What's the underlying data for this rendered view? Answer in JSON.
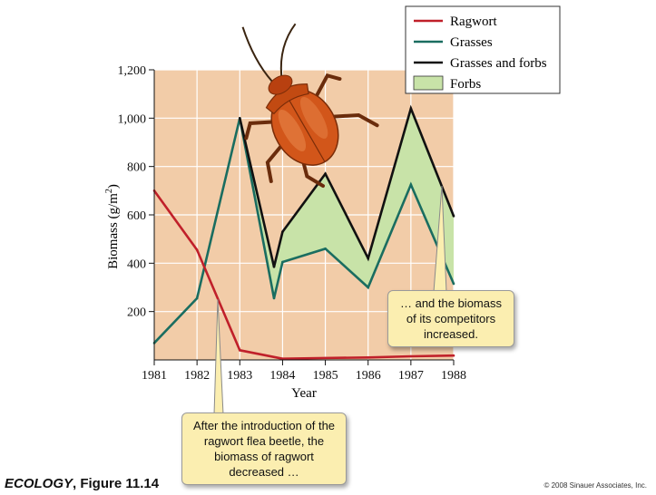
{
  "chart_data": {
    "type": "line",
    "xlabel": "Year",
    "ylabel_main": "Biomass (g/m",
    "ylabel_sup": "2",
    "ylabel_tail": ")",
    "x": [
      1981,
      1982,
      1983,
      1984,
      1985,
      1986,
      1987,
      1988
    ],
    "xlim": [
      1981,
      1988
    ],
    "ylim": [
      0,
      1200
    ],
    "y_ticks": [
      200,
      400,
      600,
      800,
      1000,
      1200
    ],
    "y_tick_labels": [
      "200",
      "400",
      "600",
      "800",
      "1,000",
      "1,200"
    ],
    "x_tick_labels": [
      "1981",
      "1982",
      "1983",
      "1984",
      "1985",
      "1986",
      "1987",
      "1988"
    ],
    "grid": true,
    "legend_position": "top-right",
    "series": [
      {
        "name": "Ragwort",
        "color": "#c0202a",
        "points": [
          [
            1981,
            700
          ],
          [
            1982,
            455
          ],
          [
            1983,
            40
          ],
          [
            1984,
            5
          ],
          [
            1985,
            8
          ],
          [
            1986,
            10
          ],
          [
            1987,
            15
          ],
          [
            1988,
            18
          ]
        ]
      },
      {
        "name": "Grasses",
        "color": "#1a6d60",
        "points": [
          [
            1981,
            70
          ],
          [
            1982,
            255
          ],
          [
            1983,
            1000
          ],
          [
            1983.8,
            255
          ],
          [
            1984,
            405
          ],
          [
            1985,
            460
          ],
          [
            1986,
            300
          ],
          [
            1987,
            725
          ],
          [
            1988,
            315
          ]
        ]
      },
      {
        "name": "Grasses and forbs",
        "color": "#111111",
        "points": [
          [
            1983,
            1000
          ],
          [
            1983.8,
            385
          ],
          [
            1984,
            530
          ],
          [
            1985,
            770
          ],
          [
            1986,
            420
          ],
          [
            1987,
            1040
          ],
          [
            1988,
            595
          ]
        ]
      }
    ],
    "fill": {
      "name": "Forbs",
      "color": "#c8e3a8",
      "between": [
        "Grasses",
        "Grasses and forbs"
      ]
    }
  },
  "annotations": {
    "competitors": "… and the biomass of its competitors increased.",
    "beetle": "After the introduction of the ragwort flea beetle, the biomass of ragwort decreased …"
  },
  "caption": {
    "title": "ECOLOGY",
    "figure": ", Figure 11.14",
    "copyright": "© 2008 Sinauer Associates, Inc."
  },
  "illustration": {
    "icon": "flea-beetle-icon",
    "color": "#d2561a"
  },
  "colors": {
    "plot_background": "#f2cca8",
    "gridline": "#ffffff",
    "callout": "#fbeeb0"
  }
}
